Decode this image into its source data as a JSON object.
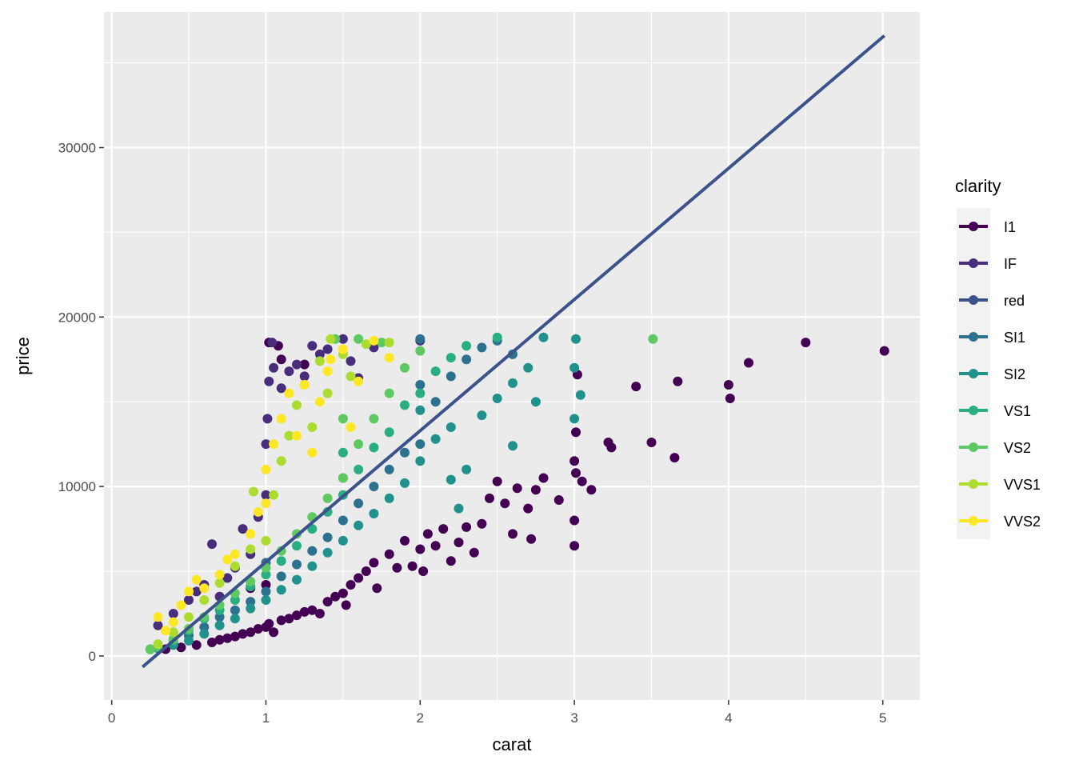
{
  "chart_data": {
    "type": "scatter",
    "title": "",
    "xlabel": "carat",
    "ylabel": "price",
    "xlim": [
      -0.05,
      5.24
    ],
    "ylim": [
      -2600,
      38000
    ],
    "x_ticks": [
      0,
      1,
      2,
      3,
      4,
      5
    ],
    "y_ticks": [
      0,
      10000,
      20000,
      30000
    ],
    "grid": true,
    "legend": {
      "title": "clarity",
      "position": "right",
      "entries": [
        {
          "label": "I1",
          "color": "#440154"
        },
        {
          "label": "IF",
          "color": "#472d7b"
        },
        {
          "label": "red",
          "color": "#3b528b"
        },
        {
          "label": "SI1",
          "color": "#2c728e"
        },
        {
          "label": "SI2",
          "color": "#21918c"
        },
        {
          "label": "VS1",
          "color": "#28ae80"
        },
        {
          "label": "VS2",
          "color": "#5ec962"
        },
        {
          "label": "VVS1",
          "color": "#addc30"
        },
        {
          "label": "VVS2",
          "color": "#fde725"
        }
      ]
    },
    "trend_line": {
      "label": "red",
      "color": "#3b528b",
      "x": [
        0.2,
        5.01
      ],
      "y": [
        -650,
        36600
      ]
    },
    "series": [
      {
        "name": "I1",
        "color": "#440154",
        "points": [
          [
            0.35,
            400
          ],
          [
            0.45,
            500
          ],
          [
            0.55,
            650
          ],
          [
            0.65,
            800
          ],
          [
            0.7,
            950
          ],
          [
            0.75,
            1050
          ],
          [
            0.8,
            1150
          ],
          [
            0.85,
            1300
          ],
          [
            0.9,
            1400
          ],
          [
            0.95,
            1600
          ],
          [
            1.0,
            1700
          ],
          [
            1.02,
            1900
          ],
          [
            1.05,
            1400
          ],
          [
            1.1,
            2100
          ],
          [
            1.15,
            2200
          ],
          [
            1.2,
            2400
          ],
          [
            1.25,
            2600
          ],
          [
            1.3,
            2700
          ],
          [
            1.35,
            2500
          ],
          [
            1.4,
            3200
          ],
          [
            1.45,
            3500
          ],
          [
            1.5,
            3700
          ],
          [
            1.52,
            3000
          ],
          [
            1.55,
            4200
          ],
          [
            1.6,
            4600
          ],
          [
            1.65,
            5000
          ],
          [
            1.7,
            5500
          ],
          [
            1.72,
            4000
          ],
          [
            1.8,
            6000
          ],
          [
            1.85,
            5200
          ],
          [
            1.9,
            6800
          ],
          [
            1.95,
            5300
          ],
          [
            2.0,
            6300
          ],
          [
            2.02,
            5000
          ],
          [
            2.05,
            7200
          ],
          [
            2.1,
            6500
          ],
          [
            2.15,
            7500
          ],
          [
            2.2,
            5600
          ],
          [
            2.25,
            6700
          ],
          [
            2.3,
            7600
          ],
          [
            2.35,
            6100
          ],
          [
            2.4,
            7800
          ],
          [
            2.45,
            9300
          ],
          [
            2.5,
            10300
          ],
          [
            2.55,
            9000
          ],
          [
            2.6,
            7200
          ],
          [
            2.63,
            9900
          ],
          [
            2.7,
            8700
          ],
          [
            2.72,
            6900
          ],
          [
            2.75,
            9800
          ],
          [
            2.8,
            10500
          ],
          [
            2.9,
            9200
          ],
          [
            3.0,
            6500
          ],
          [
            3.0,
            8000
          ],
          [
            3.01,
            10800
          ],
          [
            3.0,
            11500
          ],
          [
            3.01,
            13200
          ],
          [
            3.02,
            16600
          ],
          [
            3.05,
            10300
          ],
          [
            3.11,
            9800
          ],
          [
            3.22,
            12600
          ],
          [
            3.24,
            12300
          ],
          [
            3.4,
            15900
          ],
          [
            3.5,
            12600
          ],
          [
            3.65,
            11700
          ],
          [
            3.67,
            16200
          ],
          [
            4.0,
            16000
          ],
          [
            4.01,
            15200
          ],
          [
            4.13,
            17300
          ],
          [
            4.5,
            18500
          ],
          [
            5.01,
            18000
          ],
          [
            1.02,
            18500
          ],
          [
            1.08,
            18300
          ],
          [
            1.1,
            17500
          ],
          [
            1.25,
            17200
          ],
          [
            0.9,
            4000
          ],
          [
            1.0,
            4200
          ]
        ]
      },
      {
        "name": "IF",
        "color": "#472d7b",
        "points": [
          [
            0.3,
            1800
          ],
          [
            0.4,
            2500
          ],
          [
            0.5,
            3300
          ],
          [
            0.55,
            3800
          ],
          [
            0.6,
            4200
          ],
          [
            0.65,
            6600
          ],
          [
            0.7,
            3500
          ],
          [
            0.75,
            4600
          ],
          [
            0.8,
            5200
          ],
          [
            0.85,
            7500
          ],
          [
            0.9,
            6000
          ],
          [
            0.95,
            8200
          ],
          [
            1.0,
            9500
          ],
          [
            1.0,
            12500
          ],
          [
            1.01,
            14000
          ],
          [
            1.02,
            16200
          ],
          [
            1.04,
            18500
          ],
          [
            1.05,
            17000
          ],
          [
            1.1,
            15800
          ],
          [
            1.15,
            16800
          ],
          [
            1.2,
            17200
          ],
          [
            1.25,
            16500
          ],
          [
            1.3,
            18300
          ],
          [
            1.35,
            17800
          ],
          [
            1.4,
            18100
          ],
          [
            1.5,
            18700
          ],
          [
            1.55,
            17400
          ],
          [
            1.6,
            16400
          ],
          [
            1.7,
            18200
          ],
          [
            2.0,
            18600
          ]
        ]
      },
      {
        "name": "SI1",
        "color": "#2c728e",
        "points": [
          [
            0.3,
            500
          ],
          [
            0.4,
            700
          ],
          [
            0.5,
            1200
          ],
          [
            0.6,
            1700
          ],
          [
            0.7,
            2300
          ],
          [
            0.8,
            2700
          ],
          [
            0.9,
            3200
          ],
          [
            1.0,
            3800
          ],
          [
            1.0,
            5500
          ],
          [
            1.1,
            4700
          ],
          [
            1.2,
            5400
          ],
          [
            1.3,
            6200
          ],
          [
            1.4,
            7000
          ],
          [
            1.5,
            8000
          ],
          [
            1.5,
            10500
          ],
          [
            1.6,
            9000
          ],
          [
            1.7,
            10000
          ],
          [
            1.8,
            11000
          ],
          [
            1.9,
            12000
          ],
          [
            2.0,
            12500
          ],
          [
            2.0,
            16000
          ],
          [
            2.0,
            18700
          ],
          [
            2.1,
            15000
          ],
          [
            2.2,
            16500
          ],
          [
            2.3,
            17500
          ],
          [
            2.4,
            18200
          ],
          [
            2.5,
            18600
          ],
          [
            2.6,
            17800
          ]
        ]
      },
      {
        "name": "SI2",
        "color": "#21918c",
        "points": [
          [
            0.3,
            450
          ],
          [
            0.4,
            650
          ],
          [
            0.5,
            900
          ],
          [
            0.6,
            1300
          ],
          [
            0.7,
            1800
          ],
          [
            0.8,
            2200
          ],
          [
            0.9,
            2800
          ],
          [
            1.0,
            3300
          ],
          [
            1.1,
            3900
          ],
          [
            1.2,
            4500
          ],
          [
            1.3,
            5300
          ],
          [
            1.4,
            6100
          ],
          [
            1.5,
            6800
          ],
          [
            1.6,
            7700
          ],
          [
            1.7,
            8400
          ],
          [
            1.8,
            9300
          ],
          [
            1.9,
            10200
          ],
          [
            2.0,
            11500
          ],
          [
            2.0,
            14500
          ],
          [
            2.1,
            12800
          ],
          [
            2.2,
            13500
          ],
          [
            2.3,
            11000
          ],
          [
            2.4,
            14200
          ],
          [
            2.5,
            15200
          ],
          [
            2.6,
            16100
          ],
          [
            2.7,
            17000
          ],
          [
            2.75,
            15000
          ],
          [
            2.8,
            18800
          ],
          [
            3.0,
            14000
          ],
          [
            3.0,
            17000
          ],
          [
            3.01,
            18700
          ],
          [
            3.04,
            15400
          ],
          [
            2.6,
            12400
          ],
          [
            2.2,
            10400
          ],
          [
            2.25,
            8700
          ]
        ]
      },
      {
        "name": "VS1",
        "color": "#28ae80",
        "points": [
          [
            0.25,
            400
          ],
          [
            0.3,
            500
          ],
          [
            0.4,
            900
          ],
          [
            0.5,
            1500
          ],
          [
            0.6,
            2200
          ],
          [
            0.7,
            2700
          ],
          [
            0.8,
            3300
          ],
          [
            0.9,
            4100
          ],
          [
            1.0,
            4800
          ],
          [
            1.1,
            5600
          ],
          [
            1.2,
            6500
          ],
          [
            1.3,
            7500
          ],
          [
            1.4,
            8500
          ],
          [
            1.5,
            9500
          ],
          [
            1.5,
            12000
          ],
          [
            1.6,
            11000
          ],
          [
            1.7,
            12300
          ],
          [
            1.8,
            13200
          ],
          [
            1.9,
            14800
          ],
          [
            2.0,
            15500
          ],
          [
            2.1,
            16800
          ],
          [
            2.2,
            17600
          ],
          [
            2.3,
            18300
          ],
          [
            2.5,
            18800
          ]
        ]
      },
      {
        "name": "VS2",
        "color": "#5ec962",
        "points": [
          [
            0.25,
            380
          ],
          [
            0.3,
            550
          ],
          [
            0.4,
            1000
          ],
          [
            0.5,
            1600
          ],
          [
            0.6,
            2300
          ],
          [
            0.7,
            3000
          ],
          [
            0.8,
            3700
          ],
          [
            0.9,
            4400
          ],
          [
            1.0,
            5200
          ],
          [
            1.1,
            6200
          ],
          [
            1.2,
            7200
          ],
          [
            1.3,
            8200
          ],
          [
            1.4,
            9300
          ],
          [
            1.5,
            10500
          ],
          [
            1.5,
            14000
          ],
          [
            1.6,
            12500
          ],
          [
            1.7,
            14000
          ],
          [
            1.8,
            15500
          ],
          [
            1.9,
            17000
          ],
          [
            1.45,
            18700
          ],
          [
            1.6,
            18700
          ],
          [
            1.75,
            18500
          ],
          [
            2.0,
            18000
          ],
          [
            3.51,
            18700
          ]
        ]
      },
      {
        "name": "VVS1",
        "color": "#addc30",
        "points": [
          [
            0.3,
            700
          ],
          [
            0.4,
            1400
          ],
          [
            0.5,
            2300
          ],
          [
            0.6,
            3300
          ],
          [
            0.7,
            4300
          ],
          [
            0.8,
            5300
          ],
          [
            0.9,
            6300
          ],
          [
            0.92,
            9700
          ],
          [
            1.0,
            6800
          ],
          [
            1.05,
            9500
          ],
          [
            1.1,
            11500
          ],
          [
            1.15,
            13000
          ],
          [
            1.2,
            14800
          ],
          [
            1.25,
            16000
          ],
          [
            1.3,
            13500
          ],
          [
            1.35,
            17400
          ],
          [
            1.4,
            15500
          ],
          [
            1.42,
            18700
          ],
          [
            1.5,
            17800
          ],
          [
            1.55,
            16500
          ],
          [
            1.65,
            18400
          ],
          [
            1.8,
            18500
          ]
        ]
      },
      {
        "name": "VVS2",
        "color": "#fde725",
        "points": [
          [
            0.3,
            2300
          ],
          [
            0.35,
            1500
          ],
          [
            0.4,
            2000
          ],
          [
            0.45,
            3000
          ],
          [
            0.5,
            3800
          ],
          [
            0.55,
            4500
          ],
          [
            0.6,
            4000
          ],
          [
            0.7,
            4800
          ],
          [
            0.75,
            5700
          ],
          [
            0.8,
            6000
          ],
          [
            0.9,
            7200
          ],
          [
            0.95,
            8500
          ],
          [
            1.0,
            9000
          ],
          [
            1.0,
            11000
          ],
          [
            1.05,
            12500
          ],
          [
            1.1,
            14000
          ],
          [
            1.15,
            15500
          ],
          [
            1.2,
            13000
          ],
          [
            1.25,
            16000
          ],
          [
            1.3,
            12000
          ],
          [
            1.35,
            15000
          ],
          [
            1.4,
            16800
          ],
          [
            1.42,
            17500
          ],
          [
            1.5,
            18100
          ],
          [
            1.55,
            13500
          ],
          [
            1.6,
            16200
          ],
          [
            1.7,
            18600
          ],
          [
            1.8,
            17600
          ]
        ]
      }
    ]
  }
}
